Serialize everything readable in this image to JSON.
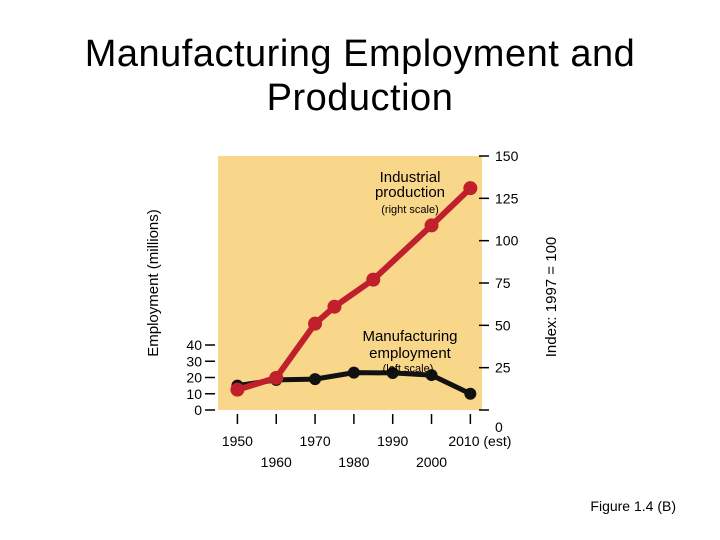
{
  "title_line1": "Manufacturing Employment and",
  "title_line2": "Production",
  "figure_label": "Figure 1.4 (B)",
  "colors": {
    "plot_background": "#f8d78b",
    "production": "#c0202c",
    "employment": "#111111"
  },
  "chart_data": {
    "type": "line",
    "ylabel_left": "Employment (millions)",
    "ylabel_right": "Index: 1997 = 100",
    "left_ticks": [
      "40",
      "30",
      "20",
      "10",
      "0"
    ],
    "left_ylim": [
      0,
      40
    ],
    "right_ticks": [
      "150",
      "125",
      "100",
      "75",
      "50",
      "25",
      "0"
    ],
    "right_ylim": [
      0,
      150
    ],
    "x_ticks": [
      {
        "value": 1950,
        "label": "1950",
        "row": "upper"
      },
      {
        "value": 1960,
        "label": "1960",
        "row": "lower"
      },
      {
        "value": 1970,
        "label": "1970",
        "row": "upper"
      },
      {
        "value": 1980,
        "label": "1980",
        "row": "lower"
      },
      {
        "value": 1990,
        "label": "1990",
        "row": "upper"
      },
      {
        "value": 2000,
        "label": "2000",
        "row": "lower"
      },
      {
        "value": 2010,
        "label": "2010 (est)",
        "row": "upper"
      }
    ],
    "xlim": [
      1945,
      2013
    ],
    "series": [
      {
        "name": "Industrial production",
        "sublabel": "(right scale)",
        "axis": "right",
        "x": [
          1950,
          1960,
          1970,
          1975,
          1985,
          2000,
          2010
        ],
        "y": [
          12,
          19,
          51,
          61,
          77,
          109,
          131
        ]
      },
      {
        "name": "Manufacturing employment",
        "sublabel": "(left scale)",
        "axis": "left",
        "x": [
          1950,
          1960,
          1970,
          1980,
          1990,
          2000,
          2010
        ],
        "y": [
          15,
          18.5,
          19,
          23,
          22.8,
          21.5,
          10
        ]
      }
    ]
  }
}
